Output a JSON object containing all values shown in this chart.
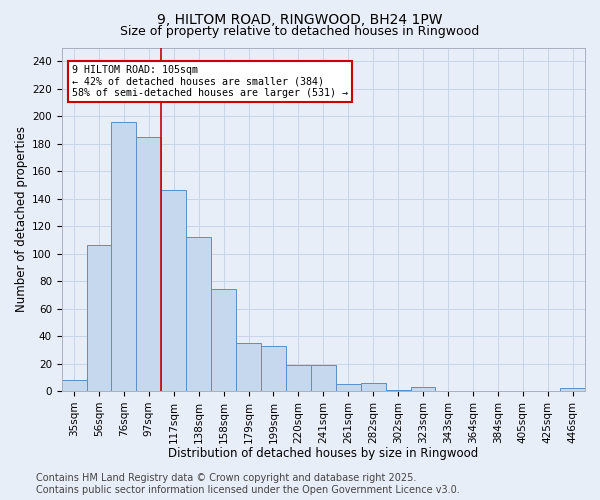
{
  "title_line1": "9, HILTOM ROAD, RINGWOOD, BH24 1PW",
  "title_line2": "Size of property relative to detached houses in Ringwood",
  "xlabel": "Distribution of detached houses by size in Ringwood",
  "ylabel": "Number of detached properties",
  "categories": [
    "35sqm",
    "56sqm",
    "76sqm",
    "97sqm",
    "117sqm",
    "138sqm",
    "158sqm",
    "179sqm",
    "199sqm",
    "220sqm",
    "241sqm",
    "261sqm",
    "282sqm",
    "302sqm",
    "323sqm",
    "343sqm",
    "364sqm",
    "384sqm",
    "405sqm",
    "425sqm",
    "446sqm"
  ],
  "values": [
    8,
    106,
    196,
    185,
    146,
    112,
    74,
    35,
    33,
    19,
    19,
    5,
    6,
    1,
    3,
    0,
    0,
    0,
    0,
    0,
    2
  ],
  "bar_color": "#c5d8ed",
  "bar_edge_color": "#5b8fc9",
  "bar_edge_width": 0.7,
  "annotation_text_line1": "9 HILTOM ROAD: 105sqm",
  "annotation_text_line2": "← 42% of detached houses are smaller (384)",
  "annotation_text_line3": "58% of semi-detached houses are larger (531) →",
  "annotation_box_facecolor": "#ffffff",
  "annotation_box_edgecolor": "#cc0000",
  "vline_color": "#cc0000",
  "vline_x": 3.5,
  "ylim": [
    0,
    250
  ],
  "yticks": [
    0,
    20,
    40,
    60,
    80,
    100,
    120,
    140,
    160,
    180,
    200,
    220,
    240
  ],
  "grid_color": "#c8d4e8",
  "bg_color": "#e8eef8",
  "footer_line1": "Contains HM Land Registry data © Crown copyright and database right 2025.",
  "footer_line2": "Contains public sector information licensed under the Open Government Licence v3.0.",
  "footer_fontsize": 7,
  "title_fontsize1": 10,
  "title_fontsize2": 9,
  "xlabel_fontsize": 8.5,
  "ylabel_fontsize": 8.5,
  "tick_fontsize": 7.5
}
